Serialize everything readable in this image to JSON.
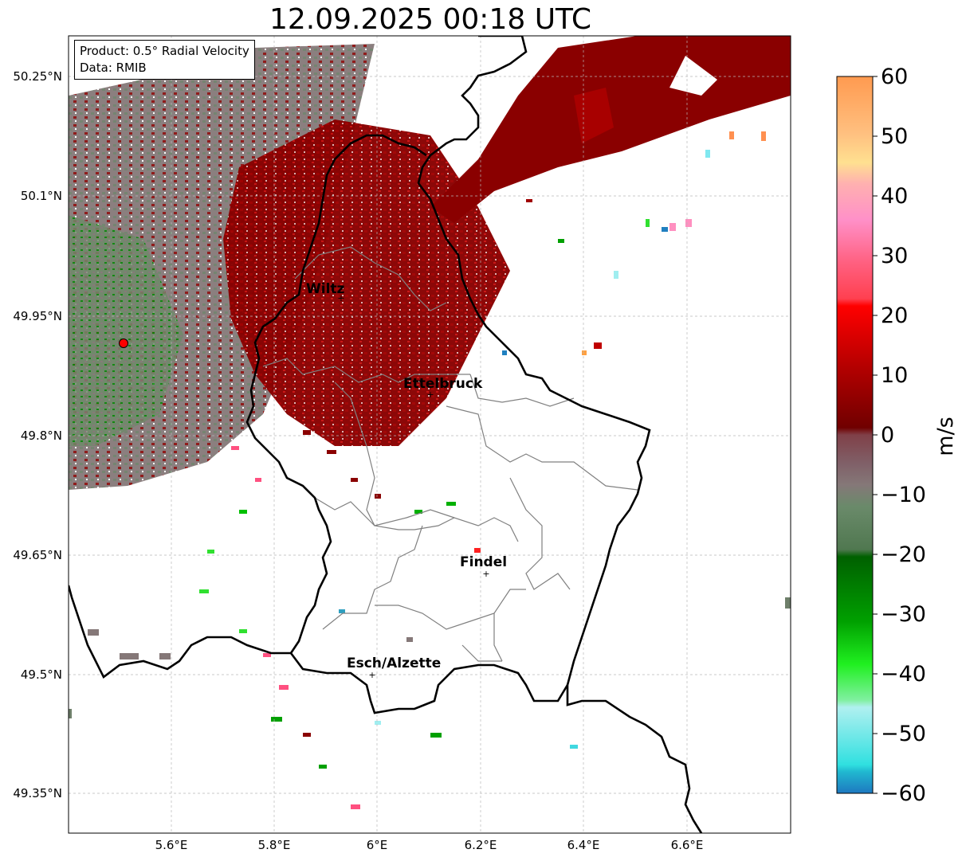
{
  "title": "12.09.2025 00:18 UTC",
  "info_box": {
    "product": "Product: 0.5° Radial Velocity",
    "data_source": "Data: RMIB"
  },
  "map": {
    "lat_ticks": [
      "50.25°N",
      "50.1°N",
      "49.95°N",
      "49.8°N",
      "49.65°N",
      "49.5°N",
      "49.35°N"
    ],
    "lon_ticks": [
      "5.6°E",
      "5.8°E",
      "6°E",
      "6.2°E",
      "6.4°E",
      "6.6°E"
    ],
    "cities": [
      {
        "name": "Wiltz"
      },
      {
        "name": "Ettelbruck"
      },
      {
        "name": "Findel"
      },
      {
        "name": "Esch/Alzette"
      }
    ],
    "radar_site_color": "#ff0000"
  },
  "colorbar": {
    "label": "m/s",
    "min": -60,
    "max": 60,
    "ticks": [
      "60",
      "50",
      "40",
      "30",
      "20",
      "10",
      "0",
      "−10",
      "−20",
      "−30",
      "−40",
      "−50",
      "−60"
    ]
  },
  "colors": {
    "approach_dark": "#7a0000",
    "approach_red": "#ff1010",
    "zero_gray": "#847a7a",
    "recede_green": "#00c000",
    "cyan": "#40d8e0",
    "border": "#000000",
    "admin_border": "#808080"
  }
}
